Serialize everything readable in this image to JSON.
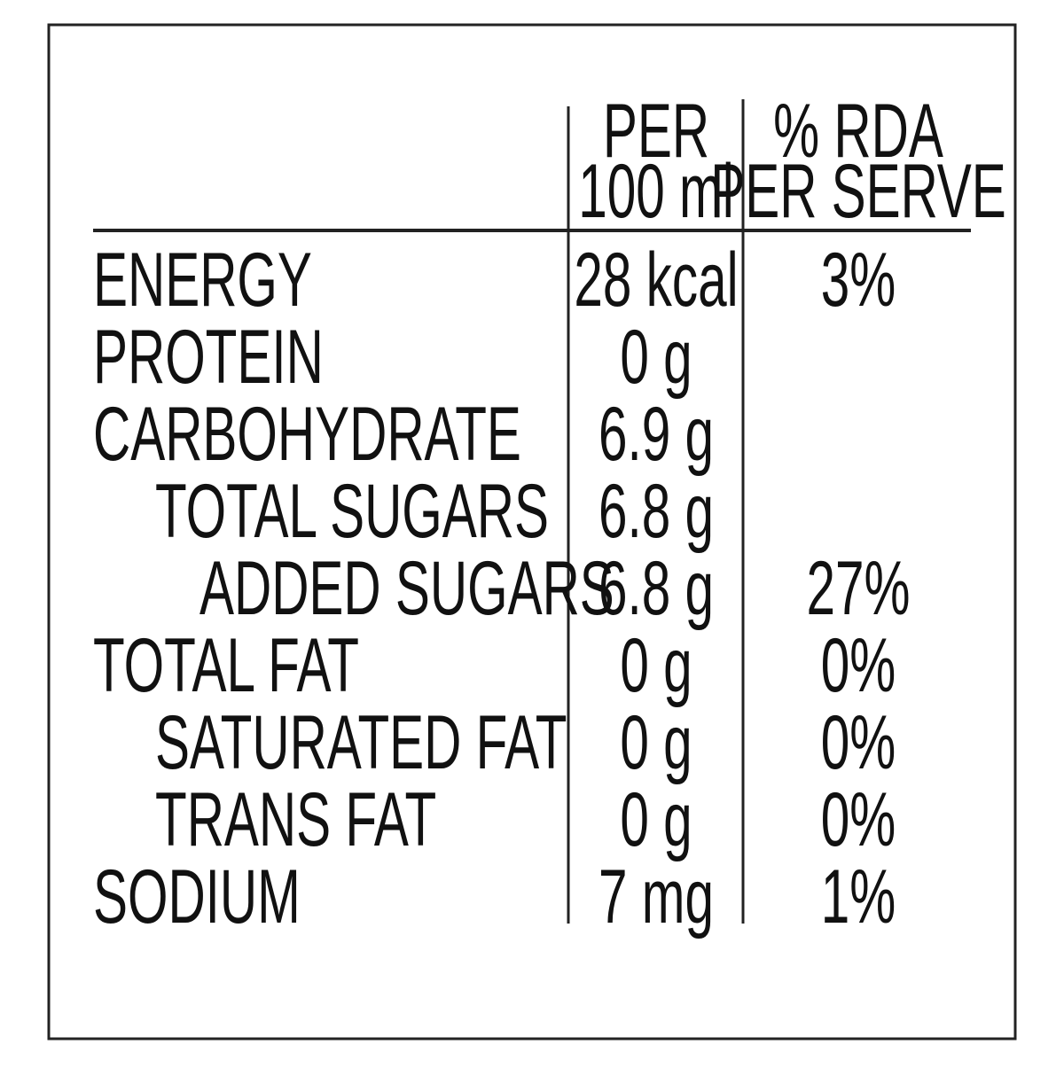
{
  "table": {
    "header": {
      "per_100ml": [
        "PER",
        "100 ml"
      ],
      "rda": [
        "% RDA",
        "PER SERVE"
      ]
    },
    "rows": [
      {
        "label": "ENERGY",
        "per_100ml": "28 kcal",
        "rda": "3%"
      },
      {
        "label": "PROTEIN",
        "per_100ml": "0 g",
        "rda": null
      },
      {
        "label": "CARBOHYDRATE",
        "per_100ml": "6.9 g",
        "rda": null
      },
      {
        "label": "TOTAL SUGARS",
        "per_100ml": "6.8 g",
        "rda": null
      },
      {
        "label": "ADDED SUGARS",
        "per_100ml": "6.8 g",
        "rda": "27%"
      },
      {
        "label": "TOTAL FAT",
        "per_100ml": "0 g",
        "rda": "0%"
      },
      {
        "label": "SATURATED FAT",
        "per_100ml": "0 g",
        "rda": "0%"
      },
      {
        "label": "TRANS FAT",
        "per_100ml": "0 g",
        "rda": "0%"
      },
      {
        "label": "SODIUM",
        "per_100ml": "7 mg",
        "rda": "1%"
      }
    ]
  }
}
